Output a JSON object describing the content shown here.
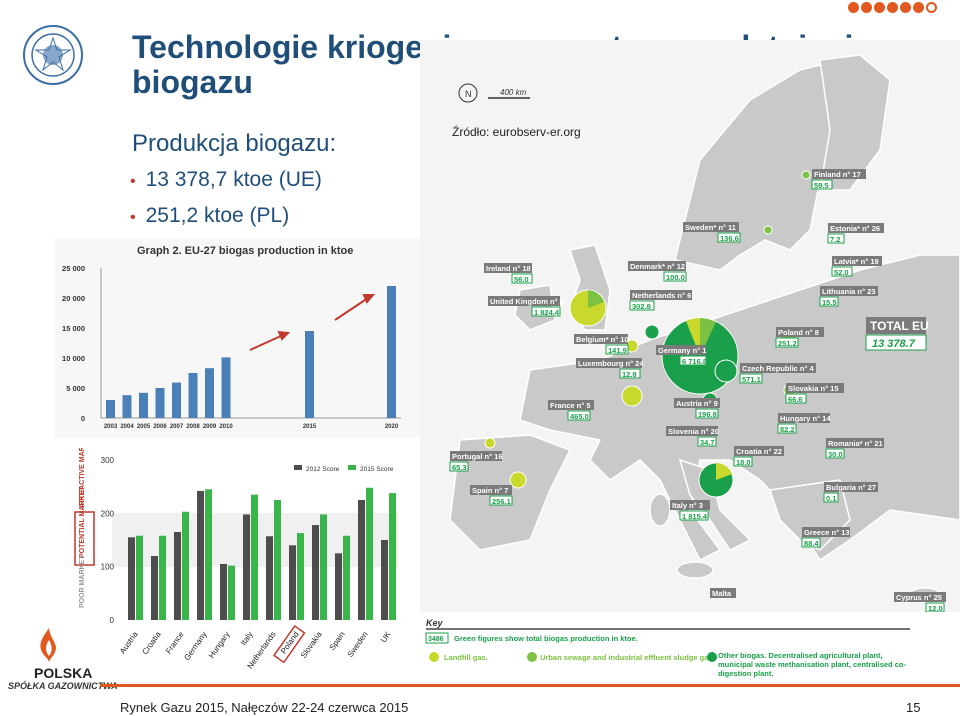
{
  "slide": {
    "title": "Technologie kriogeniczne – systemy uzdatniania biogazu",
    "subtitle": "Produkcja biogazu:",
    "bullets": [
      "13 378,7 ktoe (UE)",
      "251,2 ktoe (PL)"
    ],
    "source": "Źródło: eurobserv-er.org",
    "footer_left": "Rynek Gazu 2015, Nałęczów 22-24 czerwca 2015",
    "page_number": "15",
    "logo_line1": "POLSKA",
    "logo_line2": "SPÓŁKA GAZOWNICTWA"
  },
  "map": {
    "scale_label": "400 km",
    "north_label": "N",
    "total_label": "TOTAL EU",
    "total_value": "13 378.7",
    "countries": [
      {
        "label": "Finland n° 17",
        "value": "59.5"
      },
      {
        "label": "Sweden* n° 11",
        "value": "136.6"
      },
      {
        "label": "Estonia* n° 26",
        "value": "7.2"
      },
      {
        "label": "Latvia* n° 19",
        "value": "52.0"
      },
      {
        "label": "Ireland n° 18",
        "value": "56.0"
      },
      {
        "label": "Denmark* n° 12",
        "value": "100.0"
      },
      {
        "label": "Lithuania n° 23",
        "value": "15.5"
      },
      {
        "label": "United Kingdom n° 2",
        "value": "1 824.4"
      },
      {
        "label": "Netherlands n° 6",
        "value": "302.8"
      },
      {
        "label": "Poland n° 8",
        "value": "251.2"
      },
      {
        "label": "Belgium* n° 10",
        "value": "141.9"
      },
      {
        "label": "Germany n° 1",
        "value": "6 716.8"
      },
      {
        "label": "Luxembourg n° 24",
        "value": "12.8"
      },
      {
        "label": "Czech Republic n° 4",
        "value": "571.1"
      },
      {
        "label": "Slovakia n° 15",
        "value": "66.6"
      },
      {
        "label": "France n° 5",
        "value": "465.0"
      },
      {
        "label": "Austria n° 9",
        "value": "196.8"
      },
      {
        "label": "Hungary n° 14",
        "value": "82.2"
      },
      {
        "label": "Slovenia n° 20",
        "value": "34.7"
      },
      {
        "label": "Romania* n° 21",
        "value": "30.0"
      },
      {
        "label": "Croatia n° 22",
        "value": "18.0"
      },
      {
        "label": "Portugal n° 16",
        "value": "65.3"
      },
      {
        "label": "Spain n° 7",
        "value": "256.1"
      },
      {
        "label": "Bulgaria n° 27",
        "value": "0.1"
      },
      {
        "label": "Italy n° 3",
        "value": "1 815.4"
      },
      {
        "label": "Greece n° 13",
        "value": "88.4"
      },
      {
        "label": "Malta",
        "value": ""
      },
      {
        "label": "Cyprus n° 25",
        "value": "12.0"
      }
    ],
    "key": {
      "title": "Key",
      "example_value": "3486",
      "example_text": "Green figures show total biogas production in ktoe.",
      "items": [
        {
          "label": "Landfill gas.",
          "color": "#c8d82c"
        },
        {
          "label": "Urban sewage and industrial effluent sludge gas.",
          "color": "#7cc242"
        },
        {
          "label": "Other biogas. Decentralised agricultural plant, municipal waste methanisation plant, centralised co-digestion plant.",
          "color": "#1aa04a"
        }
      ]
    }
  },
  "chart_data": [
    {
      "type": "bar",
      "title": "Graph 2. EU-27 biogas production in ktoe",
      "categories": [
        "2003",
        "2004",
        "2005",
        "2006",
        "2007",
        "2008",
        "2009",
        "2010",
        "2015",
        "2020"
      ],
      "values": [
        3000,
        3800,
        4200,
        5000,
        5900,
        7500,
        8300,
        10100,
        14500,
        22000
      ],
      "ylim": [
        0,
        25000
      ],
      "yticks": [
        "0",
        "5 000",
        "10 000",
        "15 000",
        "20 000",
        "25 000"
      ],
      "color": "#4a7fb8"
    },
    {
      "type": "bar",
      "categories": [
        "Austria",
        "Croatia",
        "France",
        "Germany",
        "Hungary",
        "Italy",
        "Netherlands",
        "Poland",
        "Slovakia",
        "Spain",
        "Sweden",
        "UK"
      ],
      "series": [
        {
          "name": "2012 Score",
          "color": "#4d4d4d",
          "values": [
            155,
            120,
            165,
            242,
            105,
            198,
            157,
            140,
            178,
            125,
            225,
            150
          ]
        },
        {
          "name": "2015 Score",
          "color": "#3ab54a",
          "values": [
            158,
            158,
            203,
            245,
            102,
            235,
            225,
            163,
            198,
            158,
            248,
            238
          ]
        }
      ],
      "ylim": [
        0,
        300
      ],
      "yticks": [
        "0",
        "100",
        "200",
        "300"
      ],
      "zones": [
        "POOR MARKET",
        "POTENTIAL MARKET",
        "ATTRACTIVE MARKET"
      ],
      "highlighted_category": "Poland"
    }
  ]
}
